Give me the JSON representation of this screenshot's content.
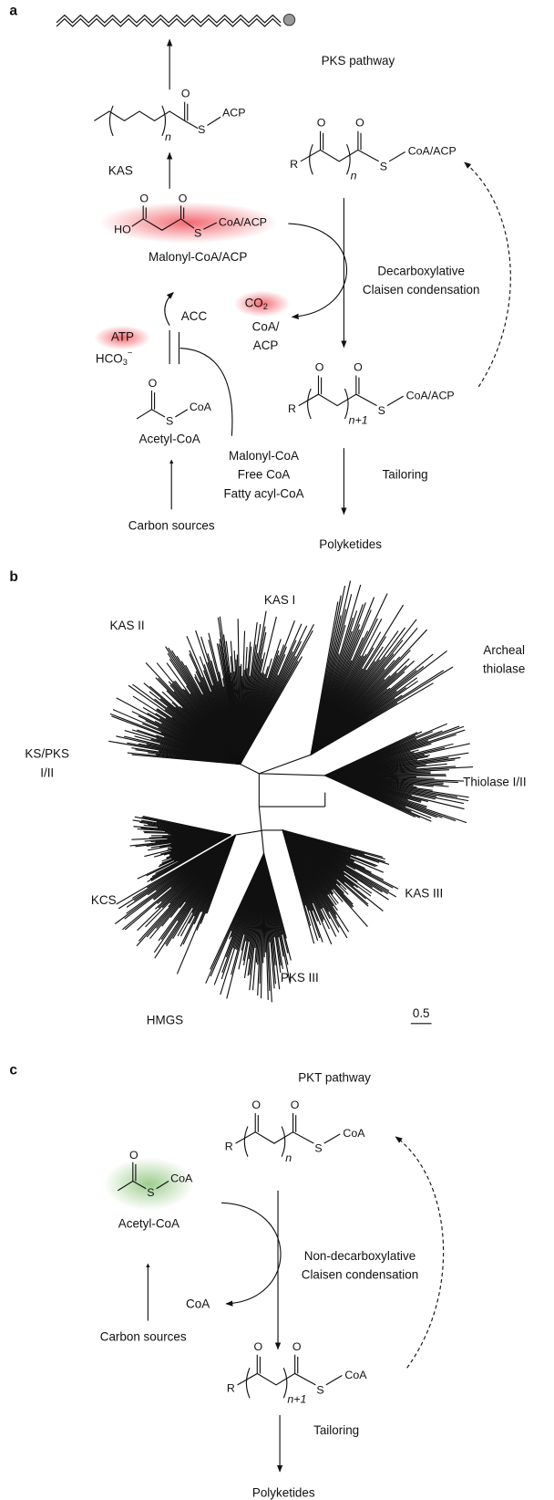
{
  "panel_a": {
    "label": "a",
    "title": "PKS pathway",
    "acyl_product": {
      "o": "O",
      "s": "S",
      "acp": "ACP",
      "n": "n"
    },
    "kas": "KAS",
    "malonyl": {
      "o1": "O",
      "o2": "O",
      "ho": "HO",
      "s": "S",
      "coa_acp": "CoA/ACP",
      "name": "Malonyl-CoA/ACP"
    },
    "acc": "ACC",
    "atp": "ATP",
    "hco3": {
      "base": "HCO",
      "sub": "3",
      "sup": "−"
    },
    "acetyl": {
      "o": "O",
      "s": "S",
      "coa": "CoA",
      "name": "Acetyl-CoA"
    },
    "carbon_sources": "Carbon sources",
    "inhibitors": [
      "Malonyl-CoA",
      "Free CoA",
      "Fatty acyl-CoA"
    ],
    "keto_n": {
      "o1": "O",
      "o2": "O",
      "r": "R",
      "n": "n",
      "s": "S",
      "coa": "CoA/ACP"
    },
    "byproducts": {
      "co": "CO",
      "co_sub": "2",
      "coa": "CoA/",
      "acp": "ACP"
    },
    "condensation": [
      "Decarboxylative",
      "Claisen condensation"
    ],
    "keto_n1": {
      "o1": "O",
      "o2": "O",
      "r": "R",
      "n": "n+1",
      "s": "S",
      "coa": "CoA/ACP"
    },
    "tailoring": "Tailoring",
    "polyketides": "Polyketides"
  },
  "panel_b": {
    "label": "b",
    "clades": [
      {
        "lines": [
          "KAS I"
        ]
      },
      {
        "lines": [
          "KAS II"
        ]
      },
      {
        "lines": [
          "Archeal",
          "thiolase"
        ]
      },
      {
        "lines": [
          "KS/PKS",
          "I/II"
        ]
      },
      {
        "lines": [
          "Thiolase I/II"
        ]
      },
      {
        "lines": [
          "KAS III"
        ]
      },
      {
        "lines": [
          "KCS"
        ]
      },
      {
        "lines": [
          "PKS III"
        ]
      },
      {
        "lines": [
          "HMGS"
        ]
      }
    ],
    "scale_bar": "0.5"
  },
  "panel_c": {
    "label": "c",
    "title": "PKT pathway",
    "keto_n": {
      "o1": "O",
      "o2": "O",
      "r": "R",
      "n": "n",
      "s": "S",
      "coa": "CoA"
    },
    "acetyl": {
      "o": "O",
      "s": "S",
      "coa": "CoA",
      "name": "Acetyl-CoA"
    },
    "coa": "CoA",
    "carbon_sources": "Carbon sources",
    "condensation": [
      "Non-decarboxylative",
      "Claisen condensation"
    ],
    "keto_n1": {
      "o1": "O",
      "o2": "O",
      "r": "R",
      "n": "n+1",
      "s": "S",
      "coa": "CoA"
    },
    "tailoring": "Tailoring",
    "polyketides": "Polyketides"
  }
}
